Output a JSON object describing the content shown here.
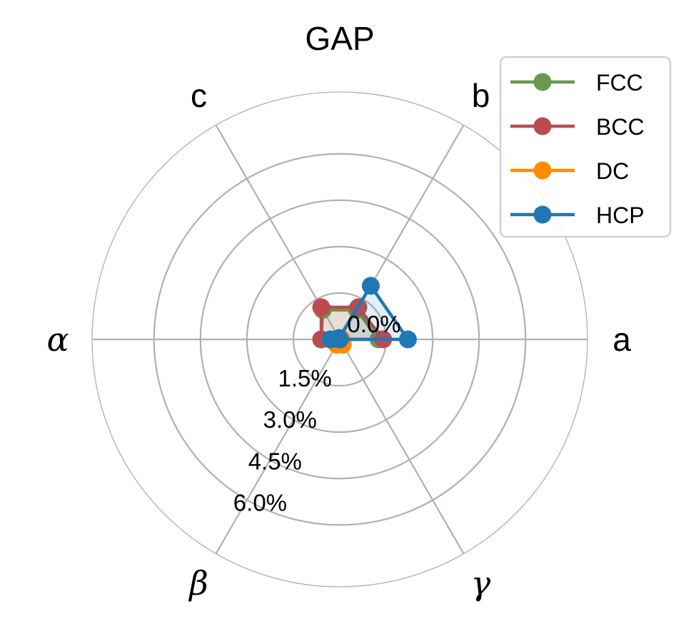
{
  "chart_data": {
    "type": "radar",
    "title": "GAP",
    "axes": [
      "a",
      "b",
      "c",
      "α",
      "β",
      "γ"
    ],
    "radial_ticks": [
      "0.0%",
      "1.5%",
      "3.0%",
      "4.5%",
      "6.0%"
    ],
    "radial_range": [
      0.0,
      8.0
    ],
    "grid": true,
    "legend_position": "top-right",
    "series": [
      {
        "name": "FCC",
        "color": "#6a994e",
        "values": [
          1.25,
          1.1,
          1.1,
          0.6,
          0.0,
          0.0
        ]
      },
      {
        "name": "BCC",
        "color": "#bc4b51",
        "values": [
          1.4,
          1.2,
          1.2,
          0.6,
          0.0,
          0.0
        ]
      },
      {
        "name": "DC",
        "color": "#ff8c00",
        "values": [
          0.05,
          0.05,
          0.05,
          0.3,
          0.2,
          0.2
        ]
      },
      {
        "name": "HCP",
        "color": "#1f77b4",
        "values": [
          2.2,
          2.0,
          0.05,
          0.3,
          0.0,
          0.0
        ]
      }
    ]
  }
}
